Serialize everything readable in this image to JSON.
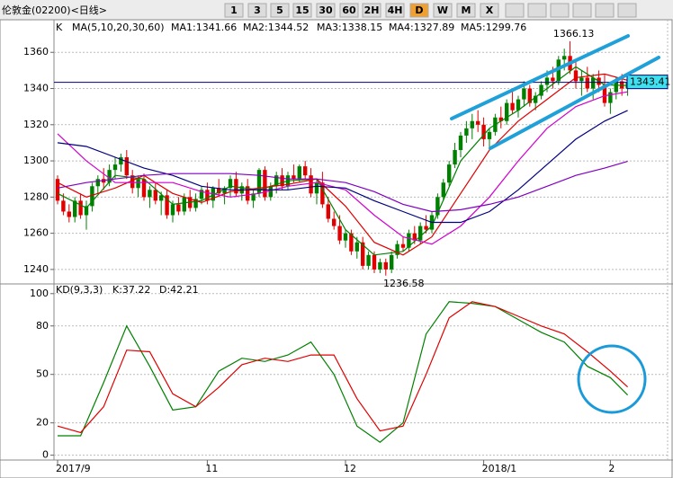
{
  "toolbar": {
    "title": "伦敦金(02200)<日线>",
    "buttons": [
      "1",
      "3",
      "5",
      "15",
      "30",
      "60",
      "2H",
      "4H",
      "D",
      "W",
      "M",
      "X"
    ]
  },
  "chart_data": [
    {
      "type": "candlestick",
      "title": "K",
      "subtitle": "MA(5,10,20,30,60)",
      "up_color": "#008000",
      "down_color": "#e00000",
      "xlim": [
        -0.625,
        105.94
      ],
      "ylim": [
        1232,
        1378
      ],
      "yticks": [
        1240,
        1260,
        1280,
        1300,
        1320,
        1340,
        1360
      ],
      "grid": true,
      "candles": [
        [
          1290,
          1292,
          1276,
          1278
        ],
        [
          1278,
          1282,
          1270,
          1272
        ],
        [
          1272,
          1276,
          1266,
          1269
        ],
        [
          1269,
          1280,
          1266,
          1278
        ],
        [
          1278,
          1282,
          1268,
          1270
        ],
        [
          1270,
          1278,
          1262,
          1275
        ],
        [
          1275,
          1288,
          1272,
          1286
        ],
        [
          1286,
          1292,
          1282,
          1290
        ],
        [
          1290,
          1296,
          1284,
          1288
        ],
        [
          1288,
          1298,
          1286,
          1295
        ],
        [
          1295,
          1302,
          1290,
          1298
        ],
        [
          1298,
          1304,
          1294,
          1302
        ],
        [
          1302,
          1306,
          1290,
          1292
        ],
        [
          1292,
          1295,
          1282,
          1285
        ],
        [
          1285,
          1292,
          1280,
          1290
        ],
        [
          1290,
          1293,
          1278,
          1280
        ],
        [
          1280,
          1286,
          1274,
          1284
        ],
        [
          1284,
          1288,
          1276,
          1278
        ],
        [
          1278,
          1283,
          1270,
          1281
        ],
        [
          1281,
          1284,
          1268,
          1270
        ],
        [
          1270,
          1278,
          1266,
          1276
        ],
        [
          1276,
          1280,
          1270,
          1272
        ],
        [
          1272,
          1282,
          1270,
          1280
        ],
        [
          1280,
          1284,
          1272,
          1274
        ],
        [
          1274,
          1282,
          1272,
          1279
        ],
        [
          1279,
          1286,
          1276,
          1284
        ],
        [
          1284,
          1288,
          1276,
          1278
        ],
        [
          1278,
          1286,
          1274,
          1285
        ],
        [
          1285,
          1290,
          1280,
          1282
        ],
        [
          1282,
          1286,
          1276,
          1285
        ],
        [
          1285,
          1292,
          1280,
          1290
        ],
        [
          1290,
          1294,
          1280,
          1282
        ],
        [
          1282,
          1288,
          1278,
          1286
        ],
        [
          1286,
          1290,
          1276,
          1278
        ],
        [
          1278,
          1284,
          1274,
          1282
        ],
        [
          1282,
          1296,
          1280,
          1295
        ],
        [
          1295,
          1297,
          1278,
          1280
        ],
        [
          1280,
          1288,
          1278,
          1286
        ],
        [
          1286,
          1294,
          1282,
          1292
        ],
        [
          1292,
          1296,
          1284,
          1286
        ],
        [
          1286,
          1294,
          1284,
          1292
        ],
        [
          1292,
          1298,
          1288,
          1290
        ],
        [
          1290,
          1298,
          1288,
          1297
        ],
        [
          1297,
          1300,
          1290,
          1292
        ],
        [
          1292,
          1296,
          1280,
          1282
        ],
        [
          1282,
          1290,
          1276,
          1288
        ],
        [
          1288,
          1294,
          1274,
          1276
        ],
        [
          1276,
          1280,
          1266,
          1268
        ],
        [
          1268,
          1272,
          1262,
          1264
        ],
        [
          1264,
          1270,
          1254,
          1256
        ],
        [
          1256,
          1262,
          1252,
          1260
        ],
        [
          1260,
          1262,
          1248,
          1250
        ],
        [
          1250,
          1258,
          1246,
          1255
        ],
        [
          1255,
          1258,
          1240,
          1242
        ],
        [
          1242,
          1250,
          1240,
          1248
        ],
        [
          1248,
          1250,
          1238,
          1240
        ],
        [
          1240,
          1246,
          1238,
          1244
        ],
        [
          1244,
          1246,
          1236.58,
          1240
        ],
        [
          1240,
          1250,
          1238,
          1248
        ],
        [
          1248,
          1256,
          1246,
          1254
        ],
        [
          1254,
          1258,
          1250,
          1252
        ],
        [
          1252,
          1262,
          1250,
          1260
        ],
        [
          1260,
          1264,
          1254,
          1256
        ],
        [
          1256,
          1266,
          1254,
          1264
        ],
        [
          1264,
          1270,
          1260,
          1262
        ],
        [
          1262,
          1272,
          1260,
          1270
        ],
        [
          1270,
          1282,
          1268,
          1280
        ],
        [
          1280,
          1290,
          1278,
          1288
        ],
        [
          1288,
          1300,
          1286,
          1298
        ],
        [
          1298,
          1310,
          1296,
          1306
        ],
        [
          1306,
          1316,
          1302,
          1314
        ],
        [
          1314,
          1322,
          1310,
          1318
        ],
        [
          1318,
          1326,
          1312,
          1322
        ],
        [
          1322,
          1328,
          1316,
          1320
        ],
        [
          1320,
          1324,
          1308,
          1312
        ],
        [
          1312,
          1318,
          1306,
          1316
        ],
        [
          1316,
          1326,
          1314,
          1324
        ],
        [
          1324,
          1330,
          1318,
          1322
        ],
        [
          1322,
          1334,
          1320,
          1332
        ],
        [
          1332,
          1340,
          1326,
          1328
        ],
        [
          1328,
          1336,
          1324,
          1334
        ],
        [
          1334,
          1344,
          1330,
          1340
        ],
        [
          1340,
          1342,
          1330,
          1332
        ],
        [
          1332,
          1338,
          1328,
          1336
        ],
        [
          1336,
          1344,
          1334,
          1342
        ],
        [
          1342,
          1350,
          1338,
          1346
        ],
        [
          1346,
          1352,
          1340,
          1344
        ],
        [
          1344,
          1358,
          1342,
          1356
        ],
        [
          1356,
          1362,
          1350,
          1358
        ],
        [
          1358,
          1366.13,
          1348,
          1350
        ],
        [
          1350,
          1356,
          1340,
          1344
        ],
        [
          1344,
          1350,
          1336,
          1346
        ],
        [
          1346,
          1352,
          1338,
          1340
        ],
        [
          1340,
          1348,
          1334,
          1346
        ],
        [
          1346,
          1350,
          1338,
          1342
        ],
        [
          1342,
          1348,
          1330,
          1332
        ],
        [
          1332,
          1340,
          1326,
          1338
        ],
        [
          1338,
          1346,
          1334,
          1344
        ],
        [
          1344,
          1348,
          1336,
          1340
        ],
        [
          1340,
          1346,
          1336,
          1343.41
        ]
      ],
      "x": [
        0,
        5,
        10,
        15,
        20,
        25,
        30,
        35,
        40,
        45,
        50,
        55,
        60,
        65,
        70,
        75,
        80,
        85,
        90,
        95,
        99
      ],
      "series": [
        {
          "name": "MA1:1341.66",
          "color": "#008000",
          "values": [
            1282,
            1274,
            1292,
            1290,
            1276,
            1278,
            1286,
            1284,
            1289,
            1290,
            1262,
            1248,
            1250,
            1264,
            1300,
            1318,
            1328,
            1340,
            1352,
            1342,
            1341.66
          ]
        },
        {
          "name": "MA2:1344.52",
          "color": "#e00000",
          "values": [
            1288,
            1280,
            1285,
            1292,
            1282,
            1277,
            1283,
            1285,
            1287,
            1290,
            1275,
            1255,
            1248,
            1258,
            1282,
            1306,
            1322,
            1334,
            1346,
            1348,
            1344.52
          ]
        },
        {
          "name": "MA3:1338.15",
          "color": "#d000d0",
          "values": [
            1315,
            1300,
            1288,
            1288,
            1288,
            1283,
            1280,
            1282,
            1286,
            1288,
            1284,
            1270,
            1258,
            1254,
            1264,
            1280,
            1300,
            1318,
            1330,
            1336,
            1338.15
          ]
        },
        {
          "name": "MA4:1327.89",
          "color": "#000080",
          "values": [
            1310,
            1308,
            1302,
            1296,
            1292,
            1286,
            1284,
            1284,
            1284,
            1286,
            1285,
            1278,
            1272,
            1266,
            1266,
            1272,
            1284,
            1298,
            1312,
            1322,
            1327.89
          ]
        },
        {
          "name": "MA5:1299.76",
          "color": "#8000c0",
          "values": [
            1285,
            1288,
            1290,
            1292,
            1293,
            1293,
            1293,
            1292,
            1290,
            1290,
            1288,
            1283,
            1276,
            1272,
            1273,
            1276,
            1280,
            1286,
            1292,
            1296,
            1299.76
          ]
        }
      ]
    },
    {
      "type": "line",
      "title": "KD(9,3,3)",
      "xlim": [
        -0.625,
        105.94
      ],
      "ylim": [
        -3,
        106
      ],
      "yticks": [
        0,
        20,
        50,
        80,
        100
      ],
      "grid": true,
      "xticks": [
        {
          "value": 0,
          "label": "2017/9"
        },
        {
          "value": 26,
          "label": "11"
        },
        {
          "value": 50,
          "label": "12"
        },
        {
          "value": 74,
          "label": "2018/1"
        },
        {
          "value": 96,
          "label": "2"
        }
      ],
      "x": [
        0,
        4,
        8,
        12,
        16,
        20,
        24,
        28,
        32,
        36,
        40,
        44,
        48,
        52,
        56,
        60,
        64,
        68,
        72,
        76,
        80,
        84,
        88,
        92,
        96,
        99
      ],
      "series": [
        {
          "name": "K:37.22",
          "color": "#008000",
          "values": [
            12,
            12,
            45,
            80,
            55,
            28,
            30,
            52,
            60,
            58,
            62,
            70,
            50,
            18,
            8,
            20,
            75,
            95,
            94,
            92,
            84,
            76,
            70,
            55,
            48,
            37.22
          ]
        },
        {
          "name": "D:42.21",
          "color": "#e00000",
          "values": [
            18,
            14,
            30,
            65,
            64,
            38,
            30,
            42,
            56,
            60,
            58,
            62,
            62,
            35,
            15,
            18,
            50,
            85,
            95,
            92,
            86,
            80,
            75,
            64,
            52,
            42.21
          ]
        }
      ]
    }
  ]
}
